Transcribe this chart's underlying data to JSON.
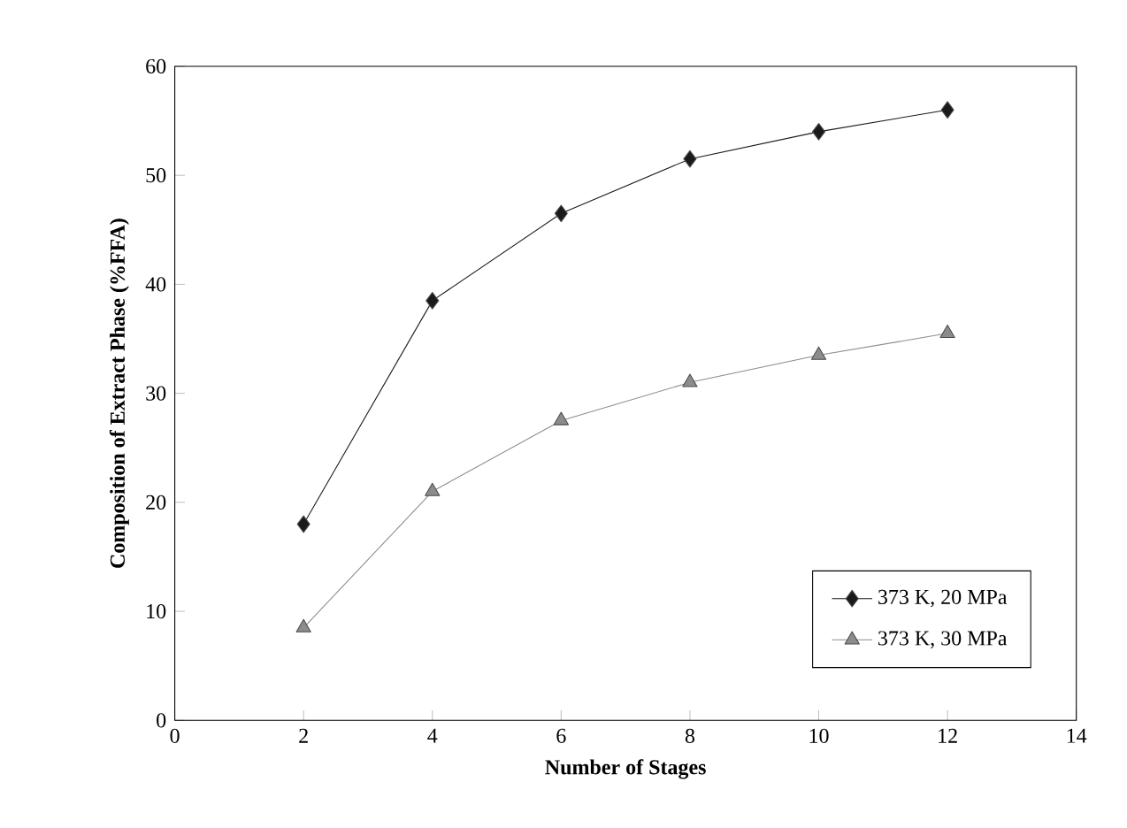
{
  "chart_data": {
    "type": "line",
    "xlabel": "Number of Stages",
    "ylabel": "Composition of Extract Phase (%FFA)",
    "x": [
      2,
      4,
      6,
      8,
      10,
      12
    ],
    "series": [
      {
        "name": "373 K, 20 MPa",
        "color": "#1a1a1a",
        "marker": "diamond",
        "values": [
          18,
          38.5,
          46.5,
          51.5,
          54,
          56
        ]
      },
      {
        "name": "373 K, 30 MPa",
        "color": "#8c8c8c",
        "marker": "triangle",
        "values": [
          8.5,
          21,
          27.5,
          31,
          33.5,
          35.5
        ]
      }
    ],
    "xlim": [
      0,
      14
    ],
    "xticks": [
      0,
      2,
      4,
      6,
      8,
      10,
      12,
      14
    ],
    "ylim": [
      0,
      60
    ],
    "yticks": [
      0,
      10,
      20,
      30,
      40,
      50,
      60
    ],
    "grid": false,
    "legend": "bottom right",
    "line_style": "solid"
  }
}
